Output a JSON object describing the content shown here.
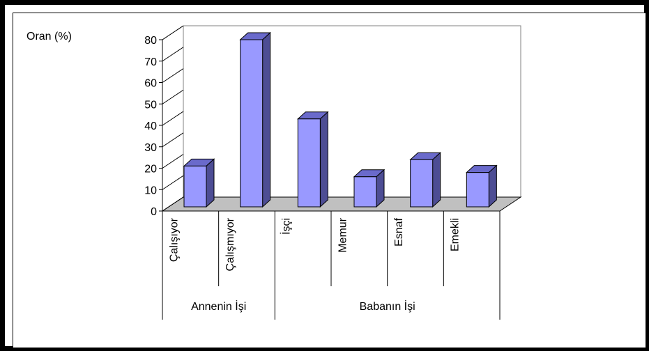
{
  "chart_data": {
    "type": "bar",
    "ylabel": "Oran (%)",
    "ylim": [
      0,
      80
    ],
    "yticks": [
      "0",
      "10",
      "20",
      "30",
      "40",
      "50",
      "60",
      "70",
      "80"
    ],
    "categories": [
      "Çalışıyor",
      "Çalışmıyor",
      "İşçi",
      "Memur",
      "Esnaf",
      "Emekli"
    ],
    "values": [
      21,
      80,
      43,
      16,
      24,
      18
    ],
    "groups": [
      {
        "label": "Annenin İşi",
        "categories": [
          "Çalışıyor",
          "Çalışmıyor"
        ]
      },
      {
        "label": "Babanın İşi",
        "categories": [
          "İşçi",
          "Memur",
          "Esnaf",
          "Emekli"
        ]
      }
    ],
    "grid": false,
    "style": "3d-column",
    "colors": {
      "bar_front": "#9999ff",
      "bar_side": "#4d4d94",
      "bar_top": "#6a6acb",
      "floor": "#c0c0c0",
      "wall": "#ffffff"
    }
  }
}
